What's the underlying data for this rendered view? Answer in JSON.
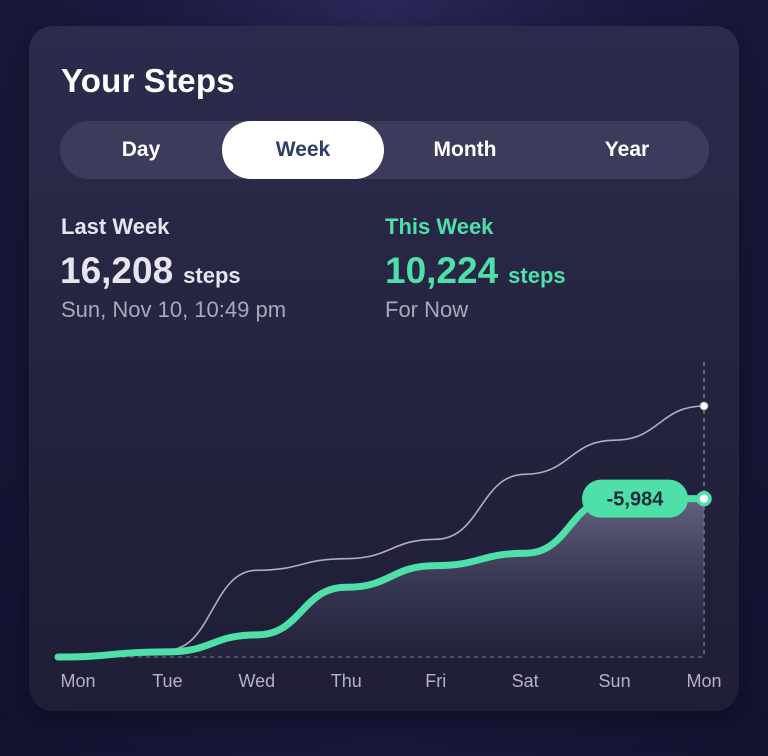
{
  "card": {
    "title": "Your Steps"
  },
  "periods": [
    {
      "label": "Day",
      "active": false
    },
    {
      "label": "Week",
      "active": true
    },
    {
      "label": "Month",
      "active": false
    },
    {
      "label": "Year",
      "active": false
    }
  ],
  "last_week": {
    "label": "Last Week",
    "value": "16,208",
    "unit": "steps",
    "sub": "Sun, Nov 10, 10:49 pm"
  },
  "this_week": {
    "label": "This Week",
    "value": "10,224",
    "unit": "steps",
    "sub": "For Now"
  },
  "colors": {
    "accent_green": "#4ee0a8",
    "last_week_line": "#c9c8da",
    "card_bg": "#26253f"
  },
  "chart_data": {
    "type": "line",
    "x": [
      "Mon",
      "Tue",
      "Wed",
      "Thu",
      "Fri",
      "Sat",
      "Sun",
      "Mon"
    ],
    "ylim": [
      0,
      16208
    ],
    "series": [
      {
        "name": "Last Week",
        "values": [
          0,
          450,
          5600,
          6350,
          7600,
          11800,
          14000,
          16208
        ]
      },
      {
        "name": "This Week",
        "values": [
          0,
          330,
          1430,
          4500,
          5900,
          6700,
          10224,
          10224
        ]
      }
    ],
    "annotation": {
      "label": "-5,984",
      "at": "Mon"
    },
    "grid": false,
    "legend": "none"
  }
}
